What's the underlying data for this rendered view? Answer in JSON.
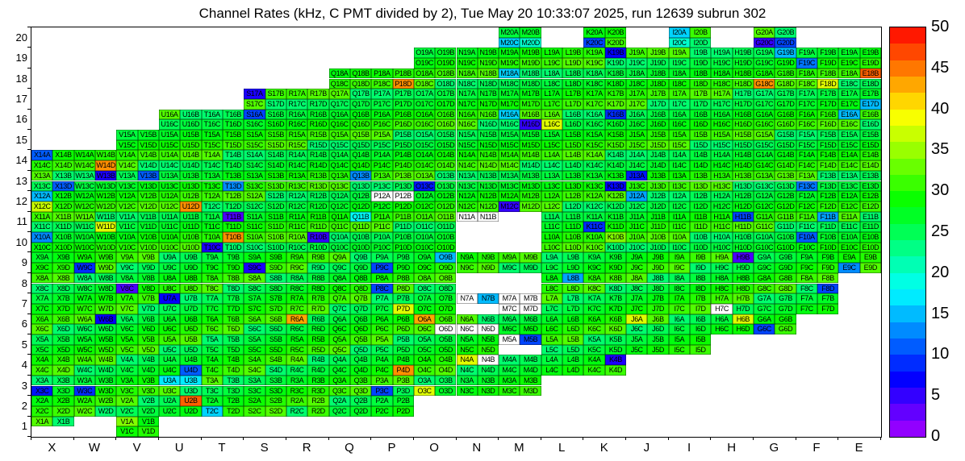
{
  "title": "Channel Rates (kHz, C PMT divided by 2), Tue May 20 10:33:07 2025, run 12639 subrun 302",
  "chart_data": {
    "type": "heatmap",
    "unit": "kHz",
    "x_labels": [
      "X",
      "W",
      "V",
      "U",
      "T",
      "S",
      "R",
      "Q",
      "P",
      "O",
      "N",
      "M",
      "L",
      "K",
      "J",
      "I",
      "H",
      "G",
      "F",
      "E"
    ],
    "y_labels": [
      "20",
      "19",
      "18",
      "17",
      "16",
      "15",
      "14",
      "13",
      "12",
      "11",
      "10",
      "9",
      "8",
      "7",
      "6",
      "5",
      "4",
      "3",
      "2",
      "1"
    ],
    "cell_quadrants": [
      "A",
      "B",
      "C",
      "D"
    ],
    "colorbar": {
      "min": 0,
      "max": 50,
      "tick_step": 5,
      "ticks": [
        "50",
        "45",
        "40",
        "35",
        "30",
        "25",
        "20",
        "15",
        "10",
        "5",
        "0"
      ]
    },
    "default_green_range": [
      24,
      32
    ],
    "rows": [
      {
        "row": 20,
        "blocks": [
          "M",
          "K",
          "I",
          "G"
        ]
      },
      {
        "row": 19,
        "blocks": [
          "O",
          "N",
          "M",
          "L",
          "K",
          "J",
          "I",
          "H",
          "G",
          "F",
          "E"
        ]
      },
      {
        "row": 18,
        "blocks": [
          "Q",
          "P",
          "O",
          "N",
          "M",
          "L",
          "K",
          "J",
          "I",
          "H",
          "G",
          "F",
          "E"
        ]
      },
      {
        "row": 17,
        "blocks": [
          "S",
          "R",
          "Q",
          "P",
          "O",
          "N",
          "M",
          "L",
          "K",
          "J",
          "I",
          "H",
          "G",
          "F",
          "E"
        ]
      },
      {
        "row": 16,
        "blocks": [
          "U",
          "T",
          "S",
          "R",
          "Q",
          "P",
          "O",
          "N",
          "M",
          "L",
          "K",
          "J",
          "I",
          "H",
          "G",
          "F",
          "E"
        ]
      },
      {
        "row": 15,
        "blocks": [
          "V",
          "U",
          "T",
          "S",
          "R",
          "Q",
          "P",
          "O",
          "N",
          "M",
          "L",
          "K",
          "J",
          "I",
          "H",
          "G",
          "F",
          "E"
        ]
      },
      {
        "row": 14,
        "blocks": [
          "X",
          "W",
          "V",
          "U",
          "T",
          "S",
          "R",
          "Q",
          "P",
          "O",
          "N",
          "M",
          "L",
          "K",
          "J",
          "I",
          "H",
          "G",
          "F",
          "E"
        ]
      },
      {
        "row": 13,
        "blocks": [
          "X",
          "W",
          "V",
          "U",
          "T",
          "S",
          "R",
          "Q",
          "P",
          "O",
          "N",
          "M",
          "L",
          "K",
          "J",
          "I",
          "H",
          "G",
          "F",
          "E"
        ]
      },
      {
        "row": 12,
        "blocks": [
          "X",
          "W",
          "V",
          "U",
          "T",
          "S",
          "R",
          "Q",
          "P",
          "O",
          "N",
          "M",
          "L",
          "K",
          "J",
          "I",
          "H",
          "G",
          "F",
          "E"
        ]
      },
      {
        "row": 11,
        "blocks": [
          "X",
          "W",
          "V",
          "U",
          "T",
          "S",
          "R",
          "Q",
          "P",
          "O",
          "N",
          "L",
          "K",
          "J",
          "I",
          "H",
          "G",
          "F",
          "E"
        ]
      },
      {
        "row": 10,
        "blocks": [
          "X",
          "W",
          "V",
          "U",
          "T",
          "S",
          "R",
          "Q",
          "P",
          "O",
          "L",
          "K",
          "J",
          "I",
          "H",
          "G",
          "F",
          "E"
        ]
      },
      {
        "row": 9,
        "blocks": [
          "X",
          "W",
          "V",
          "U",
          "T",
          "S",
          "R",
          "Q",
          "P",
          "O",
          "N",
          "M",
          "L",
          "K",
          "J",
          "I",
          "H",
          "G",
          "F",
          "E"
        ]
      },
      {
        "row": 8,
        "blocks": [
          "X",
          "W",
          "V",
          "U",
          "T",
          "S",
          "R",
          "Q",
          "P",
          "O",
          "L",
          "K",
          "J",
          "I",
          "H",
          "G",
          "F"
        ]
      },
      {
        "row": 7,
        "blocks": [
          "X",
          "W",
          "V",
          "U",
          "T",
          "S",
          "R",
          "Q",
          "P",
          "O",
          "N",
          "M",
          "L",
          "K",
          "J",
          "I",
          "H",
          "G",
          "F"
        ]
      },
      {
        "row": 6,
        "blocks": [
          "X",
          "W",
          "V",
          "U",
          "T",
          "S",
          "R",
          "Q",
          "P",
          "O",
          "N",
          "M",
          "L",
          "K",
          "J",
          "I",
          "H",
          "G"
        ]
      },
      {
        "row": 5,
        "blocks": [
          "X",
          "W",
          "V",
          "U",
          "T",
          "S",
          "R",
          "Q",
          "P",
          "O",
          "N",
          "M",
          "L",
          "K",
          "J",
          "I"
        ]
      },
      {
        "row": 4,
        "blocks": [
          "X",
          "W",
          "V",
          "U",
          "T",
          "S",
          "R",
          "Q",
          "P",
          "O",
          "N",
          "M",
          "L",
          "K"
        ]
      },
      {
        "row": 3,
        "blocks": [
          "X",
          "W",
          "V",
          "U",
          "T",
          "S",
          "R",
          "Q",
          "P",
          "O",
          "N",
          "M"
        ]
      },
      {
        "row": 2,
        "blocks": [
          "X",
          "W",
          "V",
          "U",
          "T",
          "S",
          "R",
          "Q",
          "P"
        ]
      },
      {
        "row": 1,
        "blocks": [
          "X",
          "V"
        ]
      }
    ],
    "partial_blocks": {
      "N11": "AB",
      "N7": "AB",
      "M5": "AB",
      "X1": "AB"
    },
    "white_cells": [
      "N11A",
      "N11B",
      "N7A",
      "M7A",
      "M7B",
      "M7C",
      "M7D",
      "H7C",
      "M5A",
      "P12A",
      "P12B",
      "O6D",
      "N6C",
      "N6D",
      "N4B"
    ],
    "value_overrides": {
      "X14A": 11,
      "W14D": 44,
      "X13D": 11,
      "W13B": 6,
      "V13B": 11,
      "T13D": 13,
      "Q13B": 13,
      "O13C": 8,
      "K13D": 7,
      "J13A": 8,
      "F13C": 12,
      "X12A": 15,
      "X12C": 37,
      "U12D": 44,
      "M12C": 5,
      "J12A": 14,
      "W11D": 38,
      "T11B": 4,
      "Q11B": 18,
      "K11C": 9,
      "H11B": 10,
      "F11B": 14,
      "X10A": 13,
      "T10B": 44,
      "T10C": 6,
      "R10B": 5,
      "K10B": 34,
      "F10A": 11,
      "W9C": 9,
      "S9C": 6,
      "P9C": 10,
      "O9B": 15,
      "H9B": 4,
      "E9C": 13,
      "V8C": 4,
      "P8C": 10,
      "L8B": 14,
      "F8D": 10,
      "U7A": 7,
      "N7B": 15,
      "P7D": 38,
      "W6B": 7,
      "R6A": 43,
      "O6A": 43,
      "J6A": 38,
      "H6B": 38,
      "G6C": 10,
      "M5B": 10,
      "N4A": 38,
      "P4D": 44,
      "K4B": 6,
      "U4D": 11,
      "X3C": 8,
      "W3C": 9,
      "U3A": 17,
      "U3B": 17,
      "P3C": 10,
      "O3C": 38,
      "U2B": 46,
      "T2C": 16,
      "R2D": 31,
      "V1A": 34,
      "S17A": 6,
      "E17D": 15,
      "S16A": 10,
      "M16A": 16,
      "M16D": 5,
      "L16C": 38,
      "K16B": 9,
      "E16A": 15,
      "P18D": 44,
      "M18A": 16,
      "G18C": 44,
      "F18D": 38,
      "E18B": 46,
      "G19B": 15,
      "F19C": 12,
      "K19B": 7,
      "M20C": 16,
      "M20D": 20,
      "K20C": 10,
      "I20A": 16,
      "I20C": 20,
      "G20C": 5,
      "G20D": 10
    }
  }
}
